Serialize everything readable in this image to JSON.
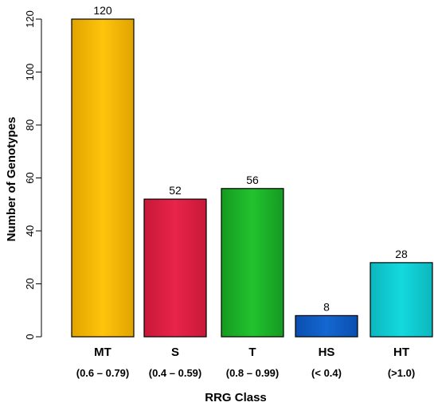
{
  "chart_data": {
    "type": "bar",
    "title": "",
    "xlabel": "RRG Class",
    "ylabel": "Number of Genotypes",
    "ylim": [
      0,
      120
    ],
    "yticks": [
      0,
      20,
      40,
      60,
      80,
      100,
      120
    ],
    "grid": false,
    "categories": [
      "MT",
      "S",
      "T",
      "HS",
      "HT"
    ],
    "category_ranges": [
      "(0.6 – 0.79)",
      "(0.4 – 0.59)",
      "(0.8 – 0.99)",
      "(< 0.4)",
      "(>1.0)"
    ],
    "values": [
      120,
      52,
      56,
      8,
      28
    ],
    "data_labels": [
      "120",
      "52",
      "56",
      "8",
      "28"
    ],
    "colors": [
      "#FFC40C",
      "#E8244A",
      "#22C22E",
      "#1467D1",
      "#14D9DE"
    ],
    "gradient_edge_colors": [
      "#E0A400",
      "#C81838",
      "#159A22",
      "#0A4FB0",
      "#0CB7BD"
    ]
  }
}
